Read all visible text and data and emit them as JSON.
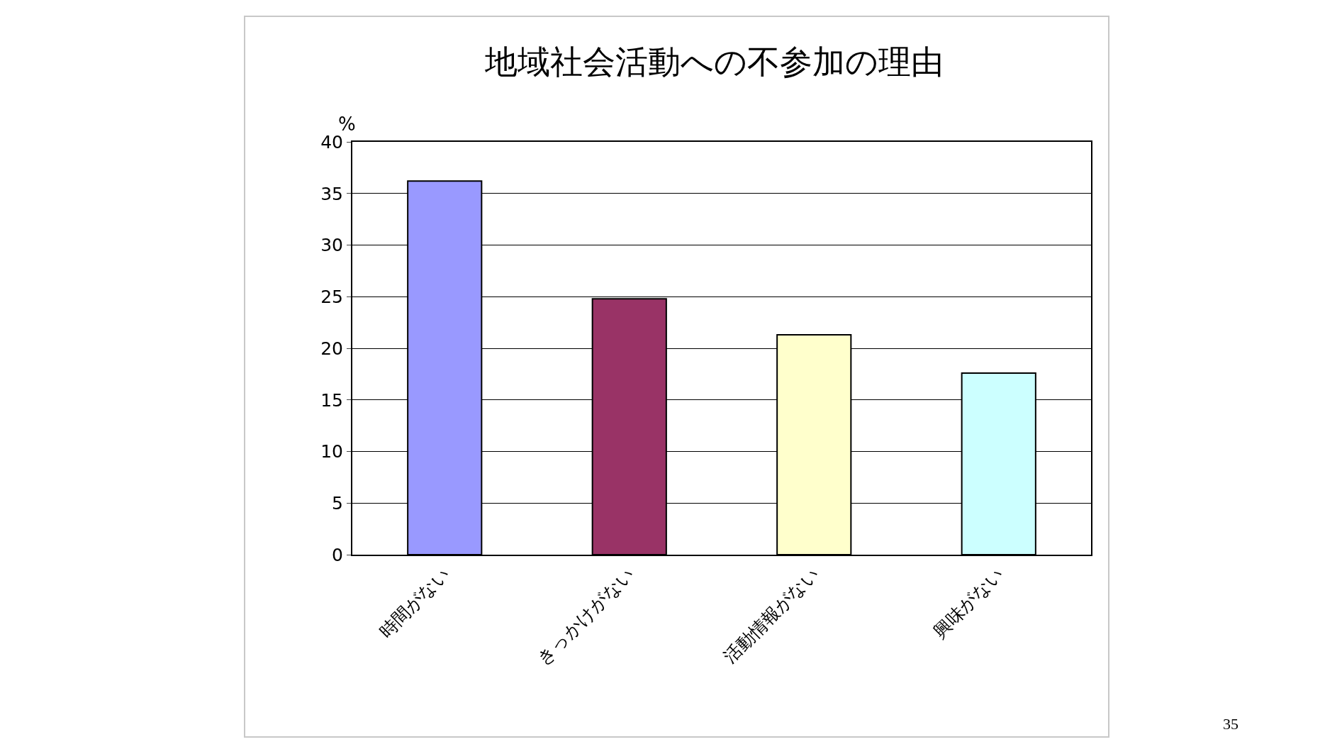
{
  "chart_data": {
    "type": "bar",
    "title": "地域社会活動への不参加の理由",
    "ylabel": "%",
    "categories": [
      "時間がない",
      "きっかけがない",
      "活動情報がない",
      "興味がない"
    ],
    "values": [
      36.2,
      24.8,
      21.3,
      17.6
    ],
    "colors": [
      "#9999ff",
      "#993366",
      "#ffffcc",
      "#ccffff"
    ],
    "ylim": [
      0,
      40
    ],
    "yticks": [
      0,
      5,
      10,
      15,
      20,
      25,
      30,
      35,
      40
    ],
    "grid": "y",
    "annotations": [
      "35"
    ]
  }
}
